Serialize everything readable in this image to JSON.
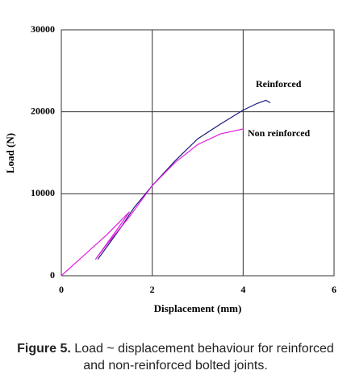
{
  "chart_data": {
    "type": "line",
    "x_label": "Displacement (mm)",
    "y_label": "Load (N)",
    "xlim": [
      0,
      6
    ],
    "xticks": [
      0,
      2,
      4,
      6
    ],
    "ylim": [
      0,
      30000
    ],
    "yticks": [
      0,
      10000,
      20000,
      30000
    ],
    "grid": true,
    "series": [
      {
        "name": "Reinforced",
        "color": "#1a1a7a",
        "x": [
          0.8,
          1.0,
          1.3,
          1.6,
          2.0,
          2.5,
          3.0,
          3.5,
          4.0,
          4.3,
          4.5,
          4.6
        ],
        "values": [
          2000,
          3500,
          5800,
          8300,
          11000,
          14000,
          16700,
          18500,
          20200,
          21000,
          21400,
          21100
        ]
      },
      {
        "name": "Non reinforced",
        "color": "#e020e0",
        "x": [
          0,
          0.5,
          1.0,
          1.5,
          1.3,
          0.75,
          1.0,
          1.5,
          2.0,
          2.5,
          3.0,
          3.5,
          4.0
        ],
        "values": [
          0,
          2500,
          5000,
          7800,
          6200,
          2000,
          3800,
          7200,
          11000,
          13800,
          16000,
          17300,
          17900
        ]
      }
    ],
    "caption_label": "Figure 5.",
    "caption": "Load ~ displacement behaviour for reinforced and non-reinforced bolted joints."
  }
}
